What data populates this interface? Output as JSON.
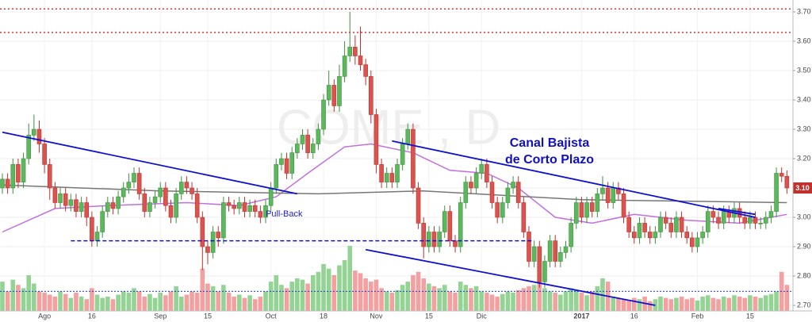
{
  "chart_data": {
    "type": "candlestick",
    "watermark": "COME , D",
    "annotations": [
      "Canal Bajista",
      "de Corto Plazo",
      "Pull-Back"
    ],
    "categories": [
      null,
      null,
      null,
      null,
      null,
      null,
      null,
      null,
      "Ago",
      null,
      null,
      null,
      null,
      null,
      null,
      null,
      null,
      "16",
      null,
      null,
      null,
      null,
      null,
      null,
      null,
      null,
      null,
      null,
      null,
      null,
      "Sep",
      null,
      null,
      null,
      null,
      null,
      null,
      null,
      null,
      "15",
      null,
      null,
      null,
      null,
      null,
      null,
      null,
      null,
      null,
      null,
      null,
      "Oct",
      null,
      null,
      null,
      null,
      null,
      null,
      null,
      null,
      null,
      "18",
      null,
      null,
      null,
      null,
      null,
      null,
      null,
      null,
      null,
      "Nov",
      null,
      null,
      null,
      null,
      null,
      null,
      null,
      null,
      null,
      "15",
      null,
      null,
      null,
      null,
      null,
      null,
      null,
      null,
      null,
      "Dic",
      null,
      null,
      null,
      null,
      null,
      null,
      null,
      null,
      null,
      null,
      null,
      null,
      null,
      null,
      null,
      null,
      null,
      null,
      "2017",
      null,
      null,
      null,
      null,
      null,
      null,
      null,
      null,
      null,
      "16",
      null,
      null,
      null,
      null,
      null,
      null,
      null,
      null,
      null,
      null,
      null,
      "Feb",
      null,
      null,
      null,
      null,
      null,
      null,
      null,
      null,
      null,
      "15",
      null,
      null,
      null,
      null,
      null,
      null,
      null
    ],
    "open": [
      3.1,
      3.13,
      3.1,
      3.18,
      3.12,
      3.2,
      3.28,
      3.3,
      3.25,
      3.18,
      3.1,
      3.05,
      3.08,
      3.04,
      3.06,
      3.02,
      3.05,
      3.0,
      2.92,
      2.95,
      3.02,
      3.05,
      3.03,
      3.07,
      3.1,
      3.12,
      3.15,
      3.08,
      3.02,
      3.05,
      3.07,
      3.1,
      3.04,
      3.0,
      3.08,
      3.12,
      3.1,
      3.08,
      3.0,
      2.9,
      2.88,
      2.95,
      2.93,
      3.05,
      3.04,
      3.03,
      3.05,
      3.02,
      3.04,
      3.02,
      3.0,
      3.04,
      3.1,
      3.18,
      3.2,
      3.15,
      3.22,
      3.25,
      3.28,
      3.22,
      3.25,
      3.3,
      3.4,
      3.45,
      3.38,
      3.48,
      3.55,
      3.58,
      3.55,
      3.52,
      3.48,
      3.35,
      3.18,
      3.12,
      3.15,
      3.12,
      3.18,
      3.25,
      3.3,
      3.1,
      2.98,
      2.9,
      2.95,
      2.9,
      2.95,
      3.02,
      2.92,
      2.9,
      3.05,
      3.12,
      3.1,
      3.15,
      3.18,
      3.12,
      3.05,
      3.0,
      3.05,
      3.1,
      3.12,
      3.05,
      2.95,
      2.85,
      2.9,
      2.78,
      2.85,
      2.92,
      2.85,
      2.88,
      2.9,
      2.98,
      3.05,
      3.0,
      3.05,
      3.02,
      3.08,
      3.1,
      3.05,
      3.1,
      3.08,
      3.0,
      2.95,
      2.93,
      2.98,
      2.95,
      2.93,
      2.95,
      3.0,
      2.98,
      2.95,
      3.0,
      2.95,
      2.93,
      2.9,
      2.93,
      2.95,
      3.02,
      3.0,
      2.98,
      3.02,
      3.0,
      3.03,
      3.0,
      2.98,
      3.0,
      2.98,
      2.98,
      3.0,
      3.02,
      3.15,
      3.14
    ],
    "high": [
      3.15,
      3.15,
      3.2,
      3.2,
      3.22,
      3.32,
      3.35,
      3.33,
      3.27,
      3.2,
      3.12,
      3.1,
      3.1,
      3.08,
      3.08,
      3.07,
      3.07,
      3.02,
      2.97,
      3.04,
      3.07,
      3.07,
      3.09,
      3.12,
      3.15,
      3.17,
      3.17,
      3.1,
      3.07,
      3.09,
      3.12,
      3.12,
      3.06,
      3.1,
      3.14,
      3.14,
      3.12,
      3.1,
      3.02,
      2.92,
      2.97,
      2.97,
      3.07,
      3.07,
      3.06,
      3.07,
      3.07,
      3.06,
      3.06,
      3.04,
      3.06,
      3.12,
      3.2,
      3.22,
      3.22,
      3.24,
      3.27,
      3.3,
      3.3,
      3.27,
      3.32,
      3.42,
      3.5,
      3.47,
      3.52,
      3.6,
      3.7,
      3.62,
      3.65,
      3.54,
      3.5,
      3.37,
      3.2,
      3.17,
      3.17,
      3.2,
      3.27,
      3.32,
      3.32,
      3.12,
      3.0,
      2.97,
      2.97,
      2.97,
      3.04,
      3.04,
      2.94,
      3.07,
      3.14,
      3.14,
      3.17,
      3.2,
      3.2,
      3.14,
      3.07,
      3.07,
      3.12,
      3.14,
      3.14,
      3.07,
      2.97,
      2.92,
      2.92,
      2.87,
      2.94,
      2.94,
      2.9,
      2.92,
      3.0,
      3.07,
      3.07,
      3.07,
      3.07,
      3.1,
      3.14,
      3.12,
      3.12,
      3.12,
      3.1,
      3.02,
      2.97,
      3.0,
      3.0,
      2.97,
      2.97,
      3.02,
      3.02,
      3.0,
      3.02,
      3.02,
      2.97,
      2.95,
      2.95,
      2.97,
      3.04,
      3.04,
      3.02,
      3.04,
      3.04,
      3.05,
      3.05,
      3.02,
      3.02,
      3.02,
      3.0,
      3.02,
      3.04,
      3.17,
      3.17,
      3.16
    ],
    "low": [
      3.08,
      3.08,
      3.08,
      3.1,
      3.1,
      3.18,
      3.26,
      3.22,
      3.15,
      3.06,
      3.03,
      3.03,
      3.02,
      3.02,
      3.0,
      3.0,
      2.97,
      2.9,
      2.9,
      2.93,
      3.0,
      3.01,
      3.01,
      3.05,
      3.08,
      3.1,
      3.06,
      3.0,
      3.0,
      3.03,
      3.05,
      3.02,
      2.98,
      2.98,
      3.06,
      3.08,
      3.06,
      2.98,
      2.82,
      2.84,
      2.86,
      2.9,
      2.91,
      3.02,
      3.01,
      3.01,
      3.0,
      3.0,
      3.0,
      2.98,
      2.98,
      3.02,
      3.08,
      3.16,
      3.13,
      3.13,
      3.2,
      3.23,
      3.2,
      3.2,
      3.23,
      3.28,
      3.38,
      3.36,
      3.36,
      3.46,
      3.53,
      3.52,
      3.5,
      3.45,
      3.32,
      3.15,
      3.1,
      3.1,
      3.1,
      3.1,
      3.16,
      3.23,
      3.08,
      2.96,
      2.86,
      2.88,
      2.88,
      2.88,
      2.93,
      2.9,
      2.88,
      2.88,
      3.03,
      3.08,
      3.08,
      3.13,
      3.1,
      3.03,
      2.98,
      2.98,
      3.03,
      3.08,
      3.03,
      2.93,
      2.83,
      2.83,
      2.76,
      2.76,
      2.83,
      2.83,
      2.83,
      2.86,
      2.88,
      2.96,
      2.98,
      2.98,
      3.0,
      3.0,
      3.06,
      3.03,
      3.03,
      3.06,
      2.98,
      2.93,
      2.91,
      2.91,
      2.93,
      2.91,
      2.91,
      2.93,
      2.96,
      2.93,
      2.93,
      2.93,
      2.91,
      2.88,
      2.88,
      2.91,
      2.93,
      2.98,
      2.96,
      2.96,
      2.98,
      2.98,
      2.98,
      2.96,
      2.96,
      2.96,
      2.96,
      2.96,
      2.98,
      3.0,
      3.12,
      3.08
    ],
    "close": [
      3.13,
      3.1,
      3.18,
      3.12,
      3.2,
      3.28,
      3.3,
      3.25,
      3.18,
      3.1,
      3.05,
      3.08,
      3.04,
      3.06,
      3.02,
      3.05,
      3.0,
      2.92,
      2.95,
      3.02,
      3.05,
      3.03,
      3.07,
      3.1,
      3.12,
      3.15,
      3.08,
      3.02,
      3.05,
      3.07,
      3.1,
      3.04,
      3.0,
      3.08,
      3.12,
      3.1,
      3.08,
      3.0,
      2.9,
      2.88,
      2.95,
      2.93,
      3.05,
      3.04,
      3.03,
      3.05,
      3.02,
      3.04,
      3.02,
      3.0,
      3.04,
      3.1,
      3.18,
      3.2,
      3.15,
      3.22,
      3.25,
      3.28,
      3.22,
      3.25,
      3.3,
      3.4,
      3.45,
      3.38,
      3.48,
      3.55,
      3.58,
      3.55,
      3.52,
      3.48,
      3.35,
      3.18,
      3.12,
      3.15,
      3.12,
      3.18,
      3.25,
      3.3,
      3.1,
      2.98,
      2.9,
      2.95,
      2.9,
      2.95,
      3.02,
      2.92,
      2.9,
      3.05,
      3.12,
      3.1,
      3.15,
      3.18,
      3.12,
      3.05,
      3.0,
      3.05,
      3.1,
      3.12,
      3.05,
      2.95,
      2.85,
      2.9,
      2.78,
      2.85,
      2.92,
      2.85,
      2.88,
      2.9,
      2.98,
      3.05,
      3.0,
      3.05,
      3.02,
      3.08,
      3.1,
      3.05,
      3.1,
      3.08,
      3.0,
      2.95,
      2.93,
      2.98,
      2.95,
      2.93,
      2.95,
      3.0,
      2.98,
      2.95,
      3.0,
      2.95,
      2.93,
      2.9,
      2.93,
      2.95,
      3.02,
      3.0,
      2.98,
      3.02,
      3.0,
      3.03,
      3.0,
      2.98,
      3.0,
      2.98,
      2.98,
      3.0,
      3.02,
      3.15,
      3.14,
      3.1
    ],
    "volume": [
      45,
      30,
      48,
      40,
      35,
      55,
      42,
      30,
      28,
      25,
      22,
      30,
      26,
      20,
      28,
      22,
      18,
      35,
      25,
      20,
      22,
      18,
      25,
      30,
      28,
      35,
      30,
      22,
      26,
      20,
      28,
      24,
      30,
      38,
      22,
      25,
      30,
      28,
      65,
      42,
      38,
      30,
      40,
      28,
      22,
      25,
      20,
      24,
      18,
      22,
      30,
      45,
      55,
      40,
      35,
      45,
      50,
      48,
      42,
      55,
      60,
      72,
      65,
      55,
      70,
      78,
      100,
      62,
      58,
      50,
      45,
      48,
      35,
      30,
      28,
      32,
      40,
      45,
      55,
      60,
      50,
      42,
      38,
      35,
      40,
      30,
      28,
      45,
      40,
      35,
      38,
      30,
      28,
      25,
      22,
      26,
      30,
      28,
      32,
      35,
      38,
      40,
      45,
      35,
      30,
      28,
      25,
      30,
      35,
      32,
      28,
      24,
      30,
      38,
      50,
      45,
      22,
      20,
      18,
      16,
      20,
      18,
      22,
      15,
      18,
      22,
      20,
      18,
      20,
      22,
      18,
      20,
      16,
      22,
      24,
      20,
      18,
      22,
      20,
      24,
      22,
      20,
      24,
      22,
      20,
      24,
      26,
      30,
      60,
      40
    ],
    "volume_lim": [
      0,
      100
    ],
    "volume_average": 30,
    "up_color": "#3f8f3f",
    "down_color": "#c0302c",
    "volume_up_color": "#93d393",
    "volume_down_color": "#f4a0a0",
    "moving_averages": [
      {
        "color": "#c070e0",
        "x": [
          0,
          10,
          20,
          35,
          45,
          52,
          58,
          65,
          70,
          78,
          85,
          92,
          98,
          105,
          112,
          120,
          130,
          140,
          149
        ],
        "values": [
          2.95,
          3.03,
          3.04,
          3.05,
          3.04,
          3.07,
          3.15,
          3.24,
          3.25,
          3.22,
          3.16,
          3.15,
          3.1,
          3.0,
          2.98,
          3.01,
          2.99,
          2.98,
          3.01
        ]
      },
      {
        "color": "#777777",
        "x": [
          0,
          30,
          60,
          80,
          110,
          149
        ],
        "values": [
          3.11,
          3.09,
          3.08,
          3.09,
          3.06,
          3.05
        ]
      }
    ],
    "lines": [
      {
        "color": "#1010d0",
        "style": "solid",
        "x": [
          0,
          56
        ],
        "values": [
          3.29,
          3.08
        ]
      },
      {
        "color": "#1010d0",
        "style": "solid",
        "x": [
          74,
          143
        ],
        "values": [
          3.26,
          3.0
        ]
      },
      {
        "color": "#1010d0",
        "style": "solid",
        "x": [
          69,
          124
        ],
        "values": [
          2.89,
          2.7
        ]
      },
      {
        "color": "#1010d0",
        "style": "solid",
        "x": [
          136,
          143
        ],
        "values": [
          3.03,
          3.01
        ]
      },
      {
        "color": "#1010d0",
        "style": "dashed",
        "x": [
          13,
          101
        ],
        "values": [
          2.92,
          2.92
        ]
      },
      {
        "color": "#e03030",
        "style": "dotted",
        "x": [
          0,
          149
        ],
        "values": [
          3.71,
          3.71
        ]
      },
      {
        "color": "#e03030",
        "style": "dotted",
        "x": [
          0,
          149
        ],
        "values": [
          3.63,
          3.63
        ]
      }
    ],
    "last_price": {
      "value": 3.1,
      "label": "3.10"
    },
    "ylim": [
      2.7,
      3.7
    ],
    "yticks": [
      {
        "value": 2.7,
        "label": "2.70"
      },
      {
        "value": 2.8,
        "label": "2.80"
      },
      {
        "value": 2.9,
        "label": "2.90"
      },
      {
        "value": 3.0,
        "label": "3.00"
      },
      {
        "value": 3.1,
        "label": "3.10"
      },
      {
        "value": 3.2,
        "label": "3.20"
      },
      {
        "value": 3.3,
        "label": "3.30"
      },
      {
        "value": 3.4,
        "label": "3.40"
      },
      {
        "value": 3.5,
        "label": "3.50"
      },
      {
        "value": 3.6,
        "label": "3.60"
      },
      {
        "value": 3.7,
        "label": "3.70"
      }
    ],
    "grid": true
  }
}
